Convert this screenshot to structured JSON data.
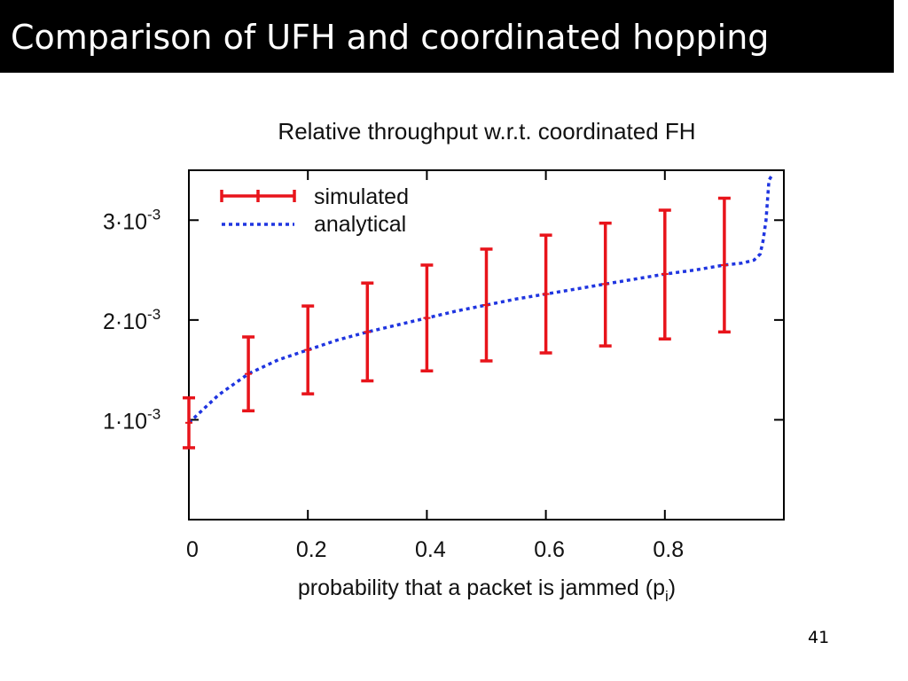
{
  "slide": {
    "title": "Comparison of UFH and coordinated hopping",
    "page_number": "41"
  },
  "chart_data": {
    "type": "line",
    "title": "Relative throughput w.r.t. coordinated FH",
    "xlabel": "probability that a packet is jammed (p",
    "xlabel_subscript": "i",
    "xlabel_suffix": ")",
    "xlim": [
      0,
      1
    ],
    "ylim": [
      0,
      0.0035
    ],
    "x_ticks": [
      {
        "value": 0,
        "label": "0"
      },
      {
        "value": 0.2,
        "label": "0.2"
      },
      {
        "value": 0.4,
        "label": "0.4"
      },
      {
        "value": 0.6,
        "label": "0.6"
      },
      {
        "value": 0.8,
        "label": "0.8"
      }
    ],
    "y_ticks": [
      {
        "value": 0.001,
        "base": "1·10",
        "exp": "-3"
      },
      {
        "value": 0.002,
        "base": "2·10",
        "exp": "-3"
      },
      {
        "value": 0.003,
        "base": "3·10",
        "exp": "-3"
      }
    ],
    "legend_position": "top-left",
    "grid": false,
    "series": [
      {
        "name": "simulated",
        "kind": "errorbar",
        "color": "#e8141b",
        "points": [
          {
            "x": 0.0,
            "y": 0.00097,
            "low": 0.00072,
            "high": 0.00122
          },
          {
            "x": 0.1,
            "y": 0.00146,
            "low": 0.00109,
            "high": 0.00183
          },
          {
            "x": 0.2,
            "y": 0.0017,
            "low": 0.00126,
            "high": 0.00214
          },
          {
            "x": 0.3,
            "y": 0.00188,
            "low": 0.00139,
            "high": 0.00237
          },
          {
            "x": 0.4,
            "y": 0.00202,
            "low": 0.00149,
            "high": 0.00255
          },
          {
            "x": 0.5,
            "y": 0.00215,
            "low": 0.00159,
            "high": 0.00271
          },
          {
            "x": 0.6,
            "y": 0.00226,
            "low": 0.00167,
            "high": 0.00285
          },
          {
            "x": 0.7,
            "y": 0.00236,
            "low": 0.00174,
            "high": 0.00297
          },
          {
            "x": 0.8,
            "y": 0.00246,
            "low": 0.00181,
            "high": 0.0031
          },
          {
            "x": 0.9,
            "y": 0.00255,
            "low": 0.00188,
            "high": 0.00322
          }
        ]
      },
      {
        "name": "analytical",
        "kind": "line",
        "color": "#1f35e0",
        "dash": "dotted",
        "x": [
          0.0,
          0.05,
          0.1,
          0.15,
          0.2,
          0.25,
          0.3,
          0.35,
          0.4,
          0.45,
          0.5,
          0.55,
          0.6,
          0.65,
          0.7,
          0.75,
          0.8,
          0.85,
          0.9,
          0.93,
          0.95,
          0.96,
          0.965,
          0.97,
          0.975,
          0.98
        ],
        "y": [
          0.00097,
          0.00125,
          0.00146,
          0.0016,
          0.0017,
          0.0018,
          0.00188,
          0.00195,
          0.00202,
          0.00209,
          0.00215,
          0.00221,
          0.00226,
          0.00231,
          0.00236,
          0.00241,
          0.00246,
          0.0025,
          0.00255,
          0.00257,
          0.0026,
          0.00266,
          0.00279,
          0.003,
          0.0034,
          0.00345
        ]
      }
    ]
  }
}
